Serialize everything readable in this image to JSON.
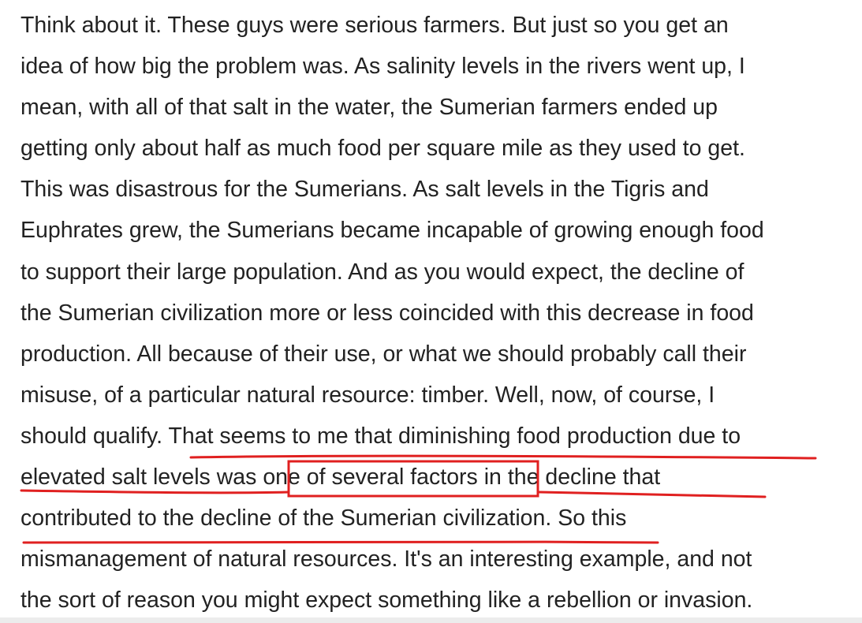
{
  "passage": {
    "lines": [
      "Think about it. These guys were serious farmers. But just so you get an",
      "idea of how big the problem was. As salinity levels in the rivers went up, I",
      "mean, with all of that salt in the water, the Sumerian farmers ended up",
      "getting only about half as much food per square mile as they used to get.",
      "This was disastrous for the Sumerians. As salt levels in the Tigris and",
      "Euphrates grew, the Sumerians became incapable of growing enough food",
      "to support their large population. And as you would expect, the decline of",
      "the Sumerian civilization more or less coincided with this decrease in food",
      "production. All because of their use, or what we should probably call their",
      "misuse, of a particular natural resource: timber. Well, now, of course, I",
      "should qualify. That seems to me that diminishing food production due to",
      "elevated salt levels was one of several factors in the decline that",
      "contributed to the decline of the Sumerian civilization. So this",
      "mismanagement of natural resources. It's an interesting example, and not",
      "the sort of reason you might expect something like a rebellion or invasion."
    ]
  },
  "annotations": {
    "color": "#e02020",
    "boxed_phrase": "one of several factors"
  }
}
